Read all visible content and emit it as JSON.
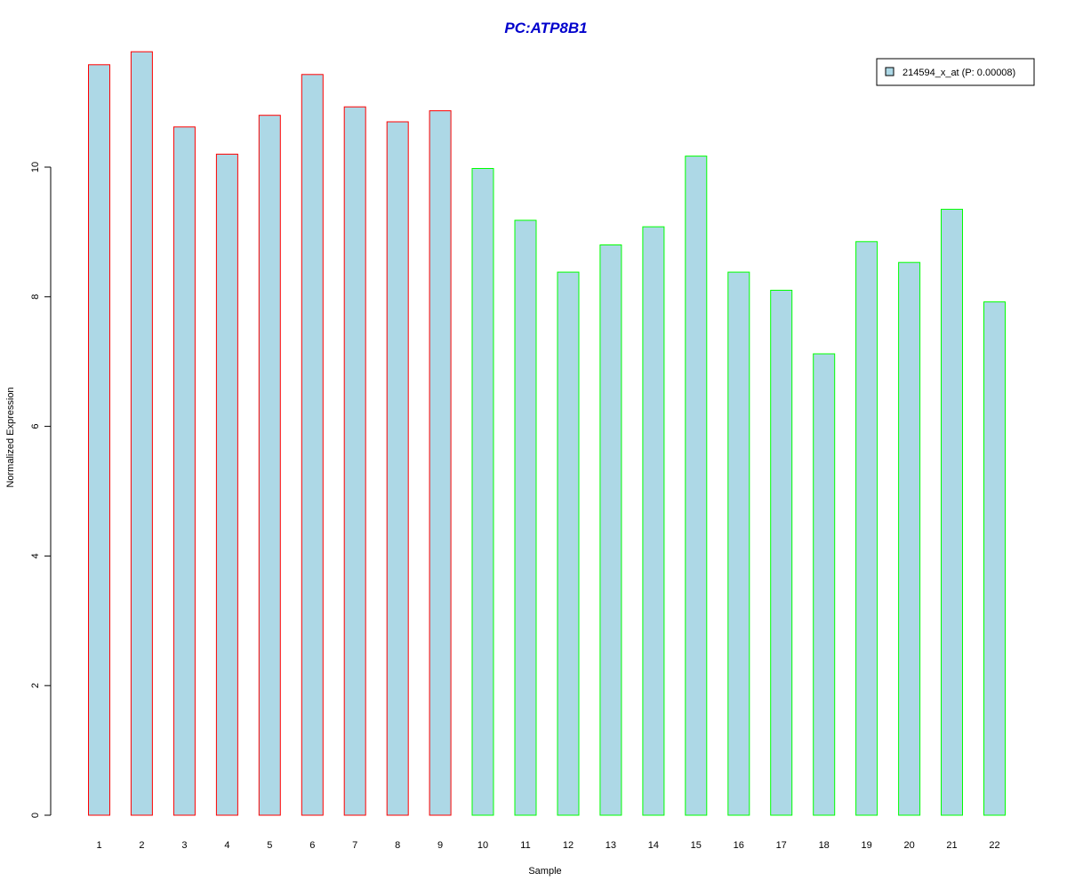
{
  "chart_data": {
    "type": "bar",
    "title": "PC:ATP8B1",
    "xlabel": "Sample",
    "ylabel": "Normalized Expression",
    "categories": [
      "1",
      "2",
      "3",
      "4",
      "5",
      "6",
      "7",
      "8",
      "9",
      "10",
      "11",
      "12",
      "13",
      "14",
      "15",
      "16",
      "17",
      "18",
      "19",
      "20",
      "21",
      "22"
    ],
    "series": [
      {
        "name": "214594_x_at (P: 0.00008)",
        "values": [
          11.58,
          11.78,
          10.62,
          10.2,
          10.8,
          11.43,
          10.93,
          10.7,
          10.87,
          9.98,
          9.18,
          8.38,
          8.8,
          9.08,
          10.17,
          8.38,
          8.1,
          7.12,
          8.85,
          8.53,
          9.35,
          7.92
        ]
      }
    ],
    "ylim": [
      0,
      12
    ],
    "yticks": [
      0,
      2,
      4,
      6,
      8,
      10
    ],
    "grid": false,
    "legend_position": "top-right"
  },
  "colors": {
    "title": "#0000cc",
    "bar_fill": "#add8e6",
    "group1_border": "#ff0000",
    "group2_border": "#00ff00",
    "axis": "#000000"
  },
  "groups": {
    "group1_samples": [
      1,
      2,
      3,
      4,
      5,
      6,
      7,
      8,
      9
    ],
    "group2_samples": [
      10,
      11,
      12,
      13,
      14,
      15,
      16,
      17,
      18,
      19,
      20,
      21,
      22
    ]
  }
}
